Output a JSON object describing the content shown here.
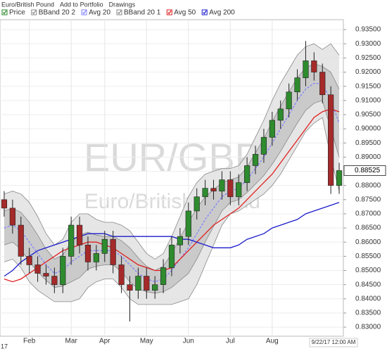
{
  "chart_data": {
    "type": "candlestick",
    "toolbar": [
      "Euro/British Pound",
      "Add to Portfolio",
      "Drawings"
    ],
    "price_label": "Price",
    "watermark": "EUR/GBP",
    "watermark_sub": "Euro/British Pound",
    "date_label": "9/22/17 12:00 AM",
    "year_label": "17",
    "last_price_label": "0.88525",
    "up_color": "#2e8b2e",
    "down_color": "#a52a2a",
    "categories": [
      null,
      null,
      null,
      "Feb",
      null,
      null,
      null,
      null,
      "Mar",
      null,
      null,
      null,
      "Apr",
      null,
      null,
      null,
      null,
      "May",
      null,
      null,
      null,
      null,
      "Jun",
      null,
      null,
      null,
      null,
      "Jul",
      null,
      null,
      null,
      null,
      "Aug",
      null,
      null,
      null,
      null,
      null,
      null,
      null,
      null
    ],
    "open": [
      0.875,
      0.872,
      0.866,
      0.855,
      0.852,
      0.849,
      0.848,
      0.845,
      0.855,
      0.866,
      0.859,
      0.853,
      0.856,
      0.861,
      0.852,
      0.845,
      0.843,
      0.848,
      0.843,
      0.845,
      0.851,
      0.859,
      0.862,
      0.871,
      0.876,
      0.879,
      0.878,
      0.882,
      0.876,
      0.881,
      0.887,
      0.891,
      0.897,
      0.903,
      0.907,
      0.913,
      0.918,
      0.924,
      0.92,
      0.912,
      0.88
    ],
    "high": [
      0.878,
      0.875,
      0.869,
      0.858,
      0.855,
      0.852,
      0.851,
      0.858,
      0.869,
      0.869,
      0.862,
      0.859,
      0.864,
      0.864,
      0.855,
      0.848,
      0.851,
      0.851,
      0.848,
      0.854,
      0.862,
      0.865,
      0.874,
      0.879,
      0.882,
      0.882,
      0.885,
      0.885,
      0.884,
      0.89,
      0.894,
      0.9,
      0.906,
      0.91,
      0.916,
      0.921,
      0.931,
      0.927,
      0.923,
      0.915,
      0.888
    ],
    "low": [
      0.869,
      0.863,
      0.852,
      0.849,
      0.846,
      0.845,
      0.842,
      0.842,
      0.852,
      0.856,
      0.85,
      0.85,
      0.853,
      0.849,
      0.842,
      0.832,
      0.84,
      0.84,
      0.84,
      0.842,
      0.848,
      0.856,
      0.859,
      0.868,
      0.873,
      0.875,
      0.875,
      0.873,
      0.873,
      0.878,
      0.884,
      0.888,
      0.894,
      0.9,
      0.904,
      0.91,
      0.915,
      0.917,
      0.909,
      0.877,
      0.877
    ],
    "close": [
      0.872,
      0.866,
      0.855,
      0.852,
      0.849,
      0.848,
      0.845,
      0.855,
      0.866,
      0.859,
      0.853,
      0.856,
      0.861,
      0.852,
      0.845,
      0.843,
      0.848,
      0.843,
      0.845,
      0.851,
      0.859,
      0.862,
      0.871,
      0.876,
      0.879,
      0.878,
      0.882,
      0.876,
      0.881,
      0.887,
      0.891,
      0.897,
      0.903,
      0.907,
      0.913,
      0.918,
      0.924,
      0.92,
      0.912,
      0.88,
      0.88525
    ],
    "bands": [
      {
        "name": "BBand 20 2",
        "color": "#e2e2e2",
        "upper": [
          0.877,
          0.878,
          0.877,
          0.874,
          0.869,
          0.863,
          0.859,
          0.861,
          0.867,
          0.87,
          0.87,
          0.868,
          0.867,
          0.867,
          0.866,
          0.864,
          0.86,
          0.856,
          0.854,
          0.856,
          0.862,
          0.869,
          0.876,
          0.881,
          0.884,
          0.885,
          0.886,
          0.886,
          0.887,
          0.891,
          0.897,
          0.903,
          0.91,
          0.916,
          0.921,
          0.926,
          0.929,
          0.93,
          0.928,
          0.93,
          0.926
        ],
        "lower": [
          0.853,
          0.854,
          0.851,
          0.846,
          0.843,
          0.841,
          0.839,
          0.839,
          0.839,
          0.84,
          0.844,
          0.846,
          0.847,
          0.847,
          0.844,
          0.84,
          0.838,
          0.838,
          0.838,
          0.838,
          0.838,
          0.839,
          0.84,
          0.845,
          0.852,
          0.859,
          0.866,
          0.87,
          0.871,
          0.873,
          0.875,
          0.877,
          0.88,
          0.884,
          0.889,
          0.894,
          0.899,
          0.902,
          0.904,
          0.89,
          0.878
        ]
      },
      {
        "name": "BBand 20 1",
        "color": "#c4c4c4",
        "upper": [
          0.871,
          0.872,
          0.8705,
          0.867,
          0.8625,
          0.8575,
          0.854,
          0.8555,
          0.86,
          0.8625,
          0.8635,
          0.8625,
          0.862,
          0.862,
          0.8605,
          0.858,
          0.8545,
          0.8515,
          0.85,
          0.8515,
          0.856,
          0.8615,
          0.867,
          0.872,
          0.876,
          0.8785,
          0.881,
          0.882,
          0.883,
          0.8865,
          0.8915,
          0.8965,
          0.9025,
          0.908,
          0.913,
          0.918,
          0.9215,
          0.923,
          0.922,
          0.92,
          0.914
        ],
        "lower": [
          0.859,
          0.86,
          0.8575,
          0.853,
          0.8495,
          0.8465,
          0.844,
          0.8445,
          0.846,
          0.8475,
          0.8505,
          0.8515,
          0.852,
          0.852,
          0.8495,
          0.846,
          0.8435,
          0.8425,
          0.842,
          0.8425,
          0.844,
          0.8465,
          0.849,
          0.854,
          0.86,
          0.8655,
          0.871,
          0.874,
          0.875,
          0.8775,
          0.8805,
          0.8835,
          0.8875,
          0.892,
          0.897,
          0.902,
          0.9065,
          0.909,
          0.91,
          0.9,
          0.89
        ]
      }
    ],
    "series": [
      {
        "name": "Avg 20",
        "color": "#8080ff",
        "dashed": true,
        "values": [
          0.865,
          0.866,
          0.864,
          0.86,
          0.856,
          0.852,
          0.849,
          0.85,
          0.853,
          0.855,
          0.857,
          0.857,
          0.857,
          0.857,
          0.855,
          0.852,
          0.849,
          0.847,
          0.846,
          0.847,
          0.85,
          0.854,
          0.858,
          0.863,
          0.868,
          0.872,
          0.876,
          0.878,
          0.879,
          0.882,
          0.886,
          0.89,
          0.895,
          0.9,
          0.905,
          0.91,
          0.914,
          0.916,
          0.916,
          0.91,
          0.902
        ]
      },
      {
        "name": "Avg 50",
        "color": "#e02020",
        "dashed": false,
        "values": [
          0.847,
          0.846,
          0.847,
          0.849,
          0.851,
          0.853,
          0.855,
          0.857,
          0.858,
          0.859,
          0.86,
          0.86,
          0.859,
          0.858,
          0.856,
          0.854,
          0.852,
          0.851,
          0.85,
          0.85,
          0.851,
          0.854,
          0.857,
          0.86,
          0.863,
          0.866,
          0.868,
          0.87,
          0.872,
          0.875,
          0.878,
          0.881,
          0.884,
          0.888,
          0.892,
          0.896,
          0.9,
          0.904,
          0.906,
          0.907,
          0.906
        ]
      },
      {
        "name": "Avg 200",
        "color": "#1c1ccc",
        "dashed": false,
        "values": [
          0.848,
          0.85,
          0.853,
          0.855,
          0.857,
          0.858,
          0.859,
          0.86,
          0.861,
          0.862,
          0.863,
          0.863,
          0.863,
          0.862,
          0.862,
          0.862,
          0.862,
          0.862,
          0.862,
          0.862,
          0.862,
          0.861,
          0.861,
          0.86,
          0.859,
          0.858,
          0.858,
          0.858,
          0.859,
          0.861,
          0.862,
          0.863,
          0.865,
          0.866,
          0.867,
          0.868,
          0.87,
          0.871,
          0.872,
          0.873,
          0.874
        ]
      }
    ],
    "ylim": [
      0.8268,
      0.9385
    ],
    "yticks": [
      {
        "value": 0.83,
        "label": "0.83000"
      },
      {
        "value": 0.835,
        "label": "0.83500"
      },
      {
        "value": 0.84,
        "label": "0.84000"
      },
      {
        "value": 0.845,
        "label": "0.84500"
      },
      {
        "value": 0.85,
        "label": "0.85000"
      },
      {
        "value": 0.855,
        "label": "0.85500"
      },
      {
        "value": 0.86,
        "label": "0.86000"
      },
      {
        "value": 0.865,
        "label": "0.86500"
      },
      {
        "value": 0.87,
        "label": "0.87000"
      },
      {
        "value": 0.875,
        "label": "0.87500"
      },
      {
        "value": 0.88,
        "label": "0.88000"
      },
      {
        "value": 0.885,
        "label": "0.88500"
      },
      {
        "value": 0.89,
        "label": "0.89000"
      },
      {
        "value": 0.895,
        "label": "0.89500"
      },
      {
        "value": 0.9,
        "label": "0.90000"
      },
      {
        "value": 0.905,
        "label": "0.90500"
      },
      {
        "value": 0.91,
        "label": "0.91000"
      },
      {
        "value": 0.915,
        "label": "0.91500"
      },
      {
        "value": 0.92,
        "label": "0.92000"
      },
      {
        "value": 0.925,
        "label": "0.92500"
      },
      {
        "value": 0.93,
        "label": "0.93000"
      },
      {
        "value": 0.935,
        "label": "0.93500"
      }
    ],
    "grid": true
  }
}
